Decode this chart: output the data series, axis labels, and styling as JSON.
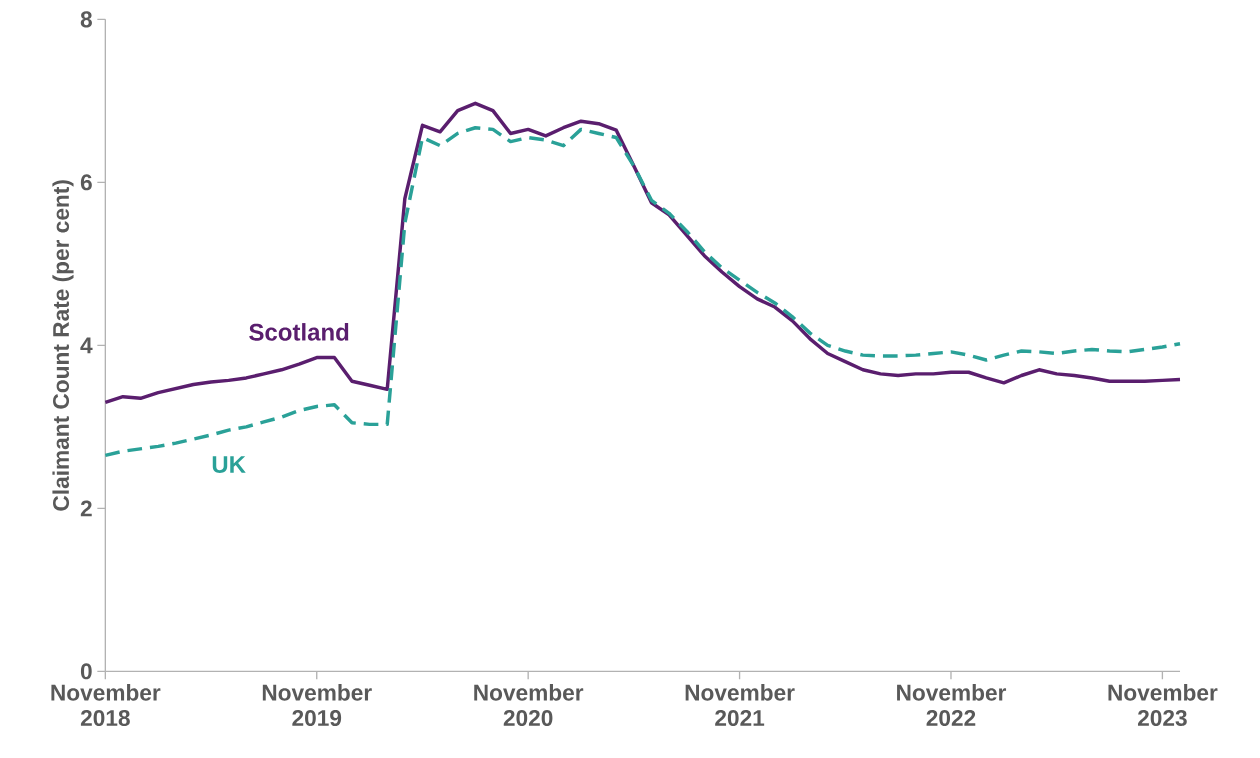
{
  "chart_data": {
    "type": "line",
    "ylabel": "Claimant Count Rate (per cent)",
    "x": [
      "2018-11",
      "2018-12",
      "2019-01",
      "2019-02",
      "2019-03",
      "2019-04",
      "2019-05",
      "2019-06",
      "2019-07",
      "2019-08",
      "2019-09",
      "2019-10",
      "2019-11",
      "2019-12",
      "2020-01",
      "2020-02",
      "2020-03",
      "2020-04",
      "2020-05",
      "2020-06",
      "2020-07",
      "2020-08",
      "2020-09",
      "2020-10",
      "2020-11",
      "2020-12",
      "2021-01",
      "2021-02",
      "2021-03",
      "2021-04",
      "2021-05",
      "2021-06",
      "2021-07",
      "2021-08",
      "2021-09",
      "2021-10",
      "2021-11",
      "2021-12",
      "2022-01",
      "2022-02",
      "2022-03",
      "2022-04",
      "2022-05",
      "2022-06",
      "2022-07",
      "2022-08",
      "2022-09",
      "2022-10",
      "2022-11",
      "2022-12",
      "2023-01",
      "2023-02",
      "2023-03",
      "2023-04",
      "2023-05",
      "2023-06",
      "2023-07",
      "2023-08",
      "2023-09",
      "2023-10",
      "2023-11",
      "2023-12"
    ],
    "series": [
      {
        "name": "Scotland",
        "color": "#5a1e6e",
        "line_style": "solid",
        "values": [
          3.3,
          3.37,
          3.35,
          3.42,
          3.47,
          3.52,
          3.55,
          3.57,
          3.6,
          3.65,
          3.7,
          3.77,
          3.85,
          3.85,
          3.56,
          3.51,
          3.46,
          5.8,
          6.7,
          6.62,
          6.88,
          6.97,
          6.88,
          6.6,
          6.65,
          6.57,
          6.67,
          6.75,
          6.72,
          6.64,
          6.2,
          5.75,
          5.6,
          5.35,
          5.1,
          4.9,
          4.72,
          4.57,
          4.47,
          4.3,
          4.08,
          3.9,
          3.8,
          3.7,
          3.65,
          3.63,
          3.65,
          3.65,
          3.67,
          3.67,
          3.6,
          3.54,
          3.63,
          3.7,
          3.65,
          3.63,
          3.6,
          3.56,
          3.56,
          3.56,
          3.57,
          3.58
        ]
      },
      {
        "name": "UK",
        "color": "#2aa198",
        "line_style": "dashed",
        "values": [
          2.65,
          2.7,
          2.73,
          2.76,
          2.8,
          2.85,
          2.9,
          2.96,
          3.0,
          3.06,
          3.12,
          3.2,
          3.25,
          3.27,
          3.05,
          3.03,
          3.03,
          5.5,
          6.55,
          6.45,
          6.6,
          6.67,
          6.65,
          6.5,
          6.55,
          6.52,
          6.45,
          6.65,
          6.6,
          6.55,
          6.2,
          5.78,
          5.62,
          5.4,
          5.15,
          4.95,
          4.8,
          4.65,
          4.52,
          4.35,
          4.15,
          4.0,
          3.93,
          3.88,
          3.87,
          3.87,
          3.88,
          3.9,
          3.92,
          3.88,
          3.82,
          3.88,
          3.93,
          3.92,
          3.9,
          3.93,
          3.95,
          3.93,
          3.92,
          3.95,
          3.98,
          4.02
        ]
      }
    ],
    "xlim": [
      "2018-11",
      "2023-12"
    ],
    "xticks": [
      {
        "value": "2018-11",
        "label": "November 2018"
      },
      {
        "value": "2019-11",
        "label": "November 2019"
      },
      {
        "value": "2020-11",
        "label": "November 2020"
      },
      {
        "value": "2021-11",
        "label": "November 2021"
      },
      {
        "value": "2022-11",
        "label": "November 2022"
      },
      {
        "value": "2023-11",
        "label": "November 2023"
      }
    ],
    "ylim": [
      0,
      8
    ],
    "yticks": [
      0,
      2,
      4,
      6,
      8
    ],
    "grid": false,
    "legend": false,
    "marker": "none"
  }
}
